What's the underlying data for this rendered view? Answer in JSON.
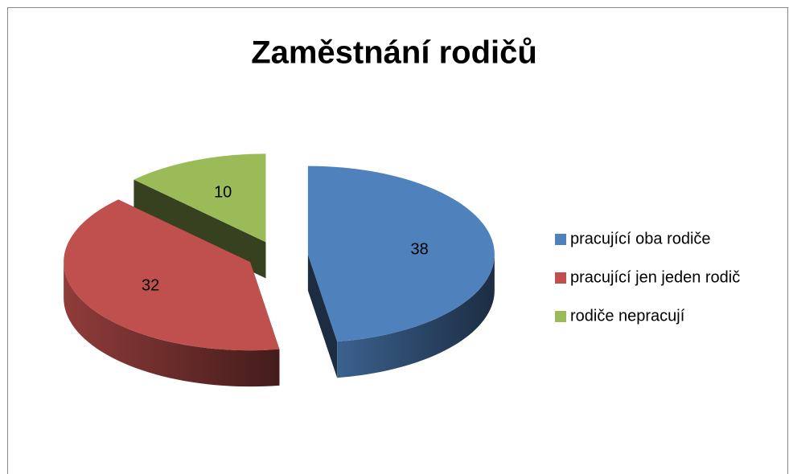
{
  "chart_data": {
    "type": "pie3d",
    "title": "Zaměstnání rodičů",
    "categories": [
      "pracující oba rodiče",
      "pracující jen jeden rodič",
      "rodiče nepracují"
    ],
    "values": [
      38,
      32,
      10
    ],
    "colors": [
      "#4f81bd",
      "#c0504d",
      "#9bbb59"
    ],
    "legend": "right"
  }
}
